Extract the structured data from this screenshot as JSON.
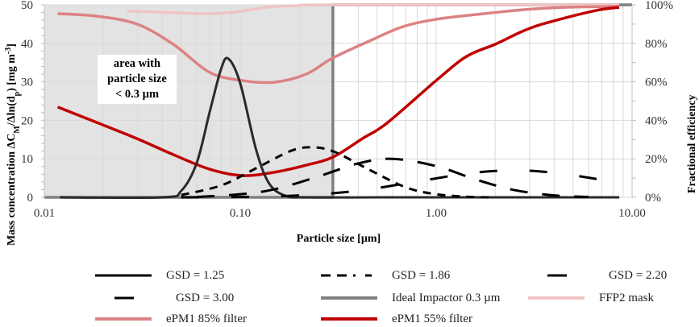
{
  "chart_data": {
    "type": "line",
    "title": "",
    "xlabel": "Particle size [µm]",
    "ylabel_left_main": "Mass concentration ΔC",
    "ylabel_left_sub1": "M",
    "ylabel_left_mid": "/Δln(d",
    "ylabel_left_sub2": "p",
    "ylabel_left_end": ") [mg m",
    "ylabel_left_sup": "-3",
    "ylabel_left_close": "]",
    "ylabel_right": "Fractional efficiency",
    "xscale": "log",
    "xlim": [
      0.01,
      10
    ],
    "ylim_left": [
      0,
      50
    ],
    "ylim_right": [
      0,
      100
    ],
    "x_ticks": [
      "0.01",
      "0.10",
      "1.00",
      "10.00"
    ],
    "x_tick_values": [
      0.01,
      0.1,
      1,
      10
    ],
    "y_left_ticks": [
      0,
      10,
      20,
      30,
      40,
      50
    ],
    "y_right_ticks": [
      "0%",
      "20%",
      "40%",
      "60%",
      "80%",
      "100%"
    ],
    "y_right_tick_values": [
      0,
      20,
      40,
      60,
      80,
      100
    ],
    "grid": true,
    "shaded_region": {
      "x_from": 0.01,
      "x_to": 0.3,
      "color": "#e3e3e3"
    },
    "annotation": [
      "area with",
      "particle size",
      "< 0.3 µm"
    ],
    "legend_position": "bottom",
    "series": [
      {
        "name": "GSD = 1.25",
        "axis": "left",
        "color": "#000000",
        "style": "solid",
        "x": [
          0.012,
          0.04,
          0.05,
          0.06,
          0.07,
          0.08,
          0.087,
          0.1,
          0.12,
          0.14,
          0.17,
          0.22,
          0.5,
          1,
          3,
          8.6
        ],
        "y": [
          0,
          0,
          1.7,
          9.0,
          22.4,
          33.5,
          36,
          29.6,
          12.7,
          3.7,
          0.4,
          0,
          0,
          0,
          0,
          0
        ]
      },
      {
        "name": "GSD = 1.86",
        "axis": "left",
        "color": "#000000",
        "style": "dash",
        "x": [
          0.05,
          0.08,
          0.12,
          0.18,
          0.23,
          0.3,
          0.45,
          0.7,
          1.0,
          1.5,
          2.0
        ],
        "y": [
          0.6,
          3.1,
          7.5,
          12.0,
          13,
          11.9,
          7.3,
          2.6,
          0.8,
          0.1,
          0
        ]
      },
      {
        "name": "GSD = 2.20",
        "axis": "left",
        "color": "#000000",
        "style": "longdash",
        "x": [
          0.06,
          0.1,
          0.15,
          0.25,
          0.4,
          0.6,
          1.0,
          1.6,
          2.5,
          4,
          6
        ],
        "y": [
          0.1,
          0.8,
          2.1,
          5.4,
          8.8,
          10,
          8.1,
          4.6,
          1.9,
          0.5,
          0.1
        ]
      },
      {
        "name": "GSD = 3.00",
        "axis": "left",
        "color": "#000000",
        "style": "sparse",
        "x": [
          0.05,
          0.1,
          0.2,
          0.4,
          0.8,
          1.5,
          2.5,
          4,
          6,
          8.6
        ],
        "y": [
          0,
          0.1,
          0.5,
          1.7,
          4.1,
          6.3,
          7,
          6.4,
          5.1,
          3.7
        ]
      },
      {
        "name": "Ideal Impactor 0.3 µm",
        "axis": "right",
        "color": "#808080",
        "style": "thick",
        "x": [
          0.01,
          0.297,
          0.297,
          10
        ],
        "y": [
          0,
          0,
          100,
          100
        ]
      },
      {
        "name": "FFP2 mask",
        "axis": "right",
        "color": "#f0c4c4",
        "style": "thick",
        "x": [
          0.0265,
          0.0395,
          0.0633,
          0.0925,
          0.136,
          0.198,
          0.297,
          8.59
        ],
        "y": [
          96.7,
          96.2,
          95.4,
          96.2,
          98.7,
          99.6,
          100,
          100
        ]
      },
      {
        "name": "ePM1 85% filter",
        "axis": "right",
        "color": "#dc8282",
        "style": "thick",
        "x": [
          0.0117,
          0.0185,
          0.0297,
          0.0455,
          0.0698,
          0.102,
          0.149,
          0.217,
          0.297,
          0.465,
          0.678,
          1.0,
          1.75,
          2.81,
          4.51,
          8.59
        ],
        "y": [
          95.4,
          94.1,
          90.0,
          79.5,
          64.9,
          60.7,
          59.8,
          64.0,
          72.4,
          81.6,
          88.7,
          92.5,
          95.4,
          97.5,
          98.7,
          99.2
        ]
      },
      {
        "name": "ePM1 55% filter",
        "axis": "right",
        "color": "#c00000",
        "style": "thick",
        "x": [
          0.0117,
          0.0185,
          0.0297,
          0.0455,
          0.0698,
          0.102,
          0.149,
          0.217,
          0.297,
          0.42,
          0.56,
          1.0,
          1.43,
          2.0,
          2.81,
          3.72,
          6.57,
          8.59
        ],
        "y": [
          46.9,
          38.9,
          30.5,
          22.2,
          14.6,
          11.3,
          13.0,
          16.7,
          20.9,
          30.5,
          38.5,
          60.7,
          73.2,
          79.5,
          86.6,
          90.8,
          97.1,
          98.7
        ]
      }
    ]
  }
}
